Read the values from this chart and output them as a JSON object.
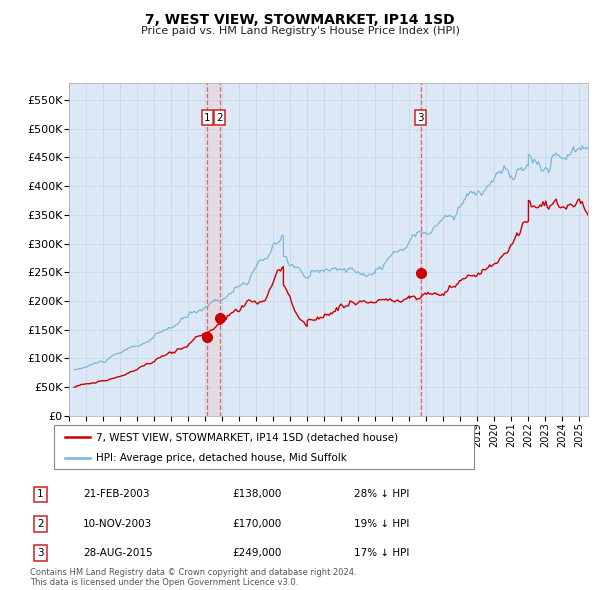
{
  "title": "7, WEST VIEW, STOWMARKET, IP14 1SD",
  "subtitle": "Price paid vs. HM Land Registry's House Price Index (HPI)",
  "hpi_label": "HPI: Average price, detached house, Mid Suffolk",
  "property_label": "7, WEST VIEW, STOWMARKET, IP14 1SD (detached house)",
  "transactions": [
    {
      "num": 1,
      "date": "21-FEB-2003",
      "price": 138000,
      "hpi_diff": "28% ↓ HPI",
      "date_decimal": 2003.13
    },
    {
      "num": 2,
      "date": "10-NOV-2003",
      "price": 170000,
      "hpi_diff": "19% ↓ HPI",
      "date_decimal": 2003.86
    },
    {
      "num": 3,
      "date": "28-AUG-2015",
      "price": 249000,
      "hpi_diff": "17% ↓ HPI",
      "date_decimal": 2015.66
    }
  ],
  "hpi_color": "#7ab8d9",
  "property_color": "#cc0000",
  "vline_color": "#e05050",
  "vshade_color": "#f5c0c0",
  "grid_color": "#c8d8e8",
  "plot_bg_color": "#dce8f5",
  "ylim": [
    0,
    580000
  ],
  "yticks": [
    0,
    50000,
    100000,
    150000,
    200000,
    250000,
    300000,
    350000,
    400000,
    450000,
    500000,
    550000
  ],
  "xstart": 1995.3,
  "xend": 2025.5,
  "footer": "Contains HM Land Registry data © Crown copyright and database right 2024.\nThis data is licensed under the Open Government Licence v3.0."
}
